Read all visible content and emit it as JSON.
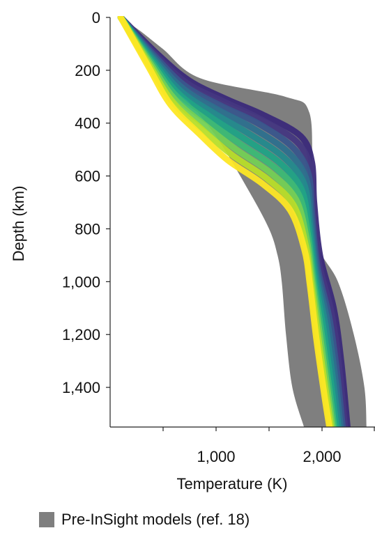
{
  "chart_data": {
    "type": "area",
    "xlabel": "Temperature (K)",
    "ylabel": "Depth (km)",
    "xlim": [
      0,
      2500
    ],
    "ylim": [
      0,
      1550
    ],
    "y_inverted": true,
    "x_ticks": [
      {
        "value": 1000,
        "label": "1,000"
      },
      {
        "value": 2000,
        "label": "2,000"
      }
    ],
    "x_minor_ticks": [
      500,
      1500,
      2500
    ],
    "y_ticks": [
      {
        "value": 0,
        "label": "0"
      },
      {
        "value": 200,
        "label": "200"
      },
      {
        "value": 400,
        "label": "400"
      },
      {
        "value": 600,
        "label": "600"
      },
      {
        "value": 800,
        "label": "800"
      },
      {
        "value": 1000,
        "label": "1,000"
      },
      {
        "value": 1200,
        "label": "1,200"
      },
      {
        "value": 1400,
        "label": "1,400"
      }
    ],
    "envelope": {
      "name": "Pre-InSight models (ref. 18)",
      "color": "#7f7f7f",
      "upper": [
        [
          100,
          0
        ],
        [
          280,
          50
        ],
        [
          500,
          120
        ],
        [
          850,
          230
        ],
        [
          1650,
          300
        ],
        [
          1880,
          360
        ],
        [
          1910,
          600
        ],
        [
          1950,
          850
        ],
        [
          2150,
          1000
        ],
        [
          2300,
          1200
        ],
        [
          2400,
          1400
        ],
        [
          2420,
          1550
        ]
      ],
      "lower": [
        [
          100,
          0
        ],
        [
          200,
          60
        ],
        [
          400,
          160
        ],
        [
          700,
          300
        ],
        [
          1000,
          450
        ],
        [
          1300,
          650
        ],
        [
          1500,
          800
        ],
        [
          1580,
          900
        ],
        [
          1620,
          1000
        ],
        [
          1660,
          1200
        ],
        [
          1720,
          1400
        ],
        [
          1830,
          1550
        ]
      ]
    },
    "colormap": [
      "#440154",
      "#482878",
      "#3e4a89",
      "#31688e",
      "#26828e",
      "#1f9e89",
      "#35b779",
      "#6ece58",
      "#b5de2b",
      "#fde725"
    ],
    "series": [
      {
        "color": "#3b2a7a",
        "values": [
          [
            100,
            0
          ],
          [
            450,
            140
          ],
          [
            750,
            240
          ],
          [
            1100,
            310
          ],
          [
            1450,
            370
          ],
          [
            1800,
            450
          ],
          [
            1905,
            550
          ],
          [
            1925,
            700
          ],
          [
            1980,
            900
          ],
          [
            2110,
            1100
          ],
          [
            2180,
            1300
          ],
          [
            2240,
            1550
          ]
        ]
      },
      {
        "color": "#453781",
        "values": [
          [
            100,
            0
          ],
          [
            440,
            145
          ],
          [
            730,
            250
          ],
          [
            1080,
            320
          ],
          [
            1420,
            385
          ],
          [
            1760,
            470
          ],
          [
            1890,
            570
          ],
          [
            1915,
            720
          ],
          [
            1965,
            920
          ],
          [
            2090,
            1120
          ],
          [
            2160,
            1320
          ],
          [
            2215,
            1550
          ]
        ]
      },
      {
        "color": "#39568c",
        "values": [
          [
            100,
            0
          ],
          [
            430,
            150
          ],
          [
            710,
            260
          ],
          [
            1050,
            335
          ],
          [
            1390,
            400
          ],
          [
            1720,
            490
          ],
          [
            1870,
            590
          ],
          [
            1905,
            740
          ],
          [
            1955,
            940
          ],
          [
            2070,
            1140
          ],
          [
            2140,
            1340
          ],
          [
            2195,
            1550
          ]
        ]
      },
      {
        "color": "#2d708e",
        "values": [
          [
            100,
            0
          ],
          [
            420,
            155
          ],
          [
            690,
            270
          ],
          [
            1020,
            350
          ],
          [
            1350,
            420
          ],
          [
            1680,
            510
          ],
          [
            1850,
            610
          ],
          [
            1895,
            760
          ],
          [
            1945,
            950
          ],
          [
            2050,
            1150
          ],
          [
            2120,
            1350
          ],
          [
            2175,
            1550
          ]
        ]
      },
      {
        "color": "#238a8d",
        "values": [
          [
            100,
            0
          ],
          [
            410,
            160
          ],
          [
            670,
            280
          ],
          [
            990,
            365
          ],
          [
            1310,
            440
          ],
          [
            1640,
            530
          ],
          [
            1830,
            630
          ],
          [
            1885,
            780
          ],
          [
            1935,
            960
          ],
          [
            2030,
            1160
          ],
          [
            2100,
            1360
          ],
          [
            2155,
            1550
          ]
        ]
      },
      {
        "color": "#20a386",
        "values": [
          [
            100,
            0
          ],
          [
            400,
            165
          ],
          [
            650,
            290
          ],
          [
            960,
            380
          ],
          [
            1270,
            460
          ],
          [
            1600,
            550
          ],
          [
            1805,
            650
          ],
          [
            1875,
            800
          ],
          [
            1925,
            970
          ],
          [
            2010,
            1170
          ],
          [
            2080,
            1370
          ],
          [
            2135,
            1550
          ]
        ]
      },
      {
        "color": "#3cbb75",
        "values": [
          [
            100,
            0
          ],
          [
            390,
            170
          ],
          [
            630,
            300
          ],
          [
            930,
            395
          ],
          [
            1230,
            480
          ],
          [
            1560,
            570
          ],
          [
            1780,
            670
          ],
          [
            1865,
            820
          ],
          [
            1915,
            980
          ],
          [
            1990,
            1180
          ],
          [
            2060,
            1380
          ],
          [
            2115,
            1550
          ]
        ]
      },
      {
        "color": "#74d055",
        "values": [
          [
            100,
            0
          ],
          [
            380,
            175
          ],
          [
            610,
            310
          ],
          [
            900,
            410
          ],
          [
            1190,
            500
          ],
          [
            1520,
            590
          ],
          [
            1755,
            690
          ],
          [
            1855,
            840
          ],
          [
            1905,
            990
          ],
          [
            1975,
            1190
          ],
          [
            2045,
            1390
          ],
          [
            2100,
            1550
          ]
        ]
      },
      {
        "color": "#b8de29",
        "values": [
          [
            100,
            0
          ],
          [
            370,
            180
          ],
          [
            590,
            320
          ],
          [
            870,
            425
          ],
          [
            1150,
            520
          ],
          [
            1480,
            610
          ],
          [
            1730,
            710
          ],
          [
            1845,
            860
          ],
          [
            1895,
            1000
          ],
          [
            1960,
            1200
          ],
          [
            2030,
            1400
          ],
          [
            2085,
            1550
          ]
        ]
      },
      {
        "color": "#fde725",
        "values": [
          [
            100,
            0
          ],
          [
            360,
            185
          ],
          [
            570,
            330
          ],
          [
            840,
            440
          ],
          [
            1110,
            540
          ],
          [
            1440,
            630
          ],
          [
            1700,
            730
          ],
          [
            1835,
            880
          ],
          [
            1885,
            1010
          ],
          [
            1945,
            1210
          ],
          [
            2015,
            1410
          ],
          [
            2070,
            1550
          ]
        ]
      }
    ]
  },
  "legend": {
    "label": "Pre-InSight models (ref. 18)",
    "color": "#7f7f7f"
  }
}
